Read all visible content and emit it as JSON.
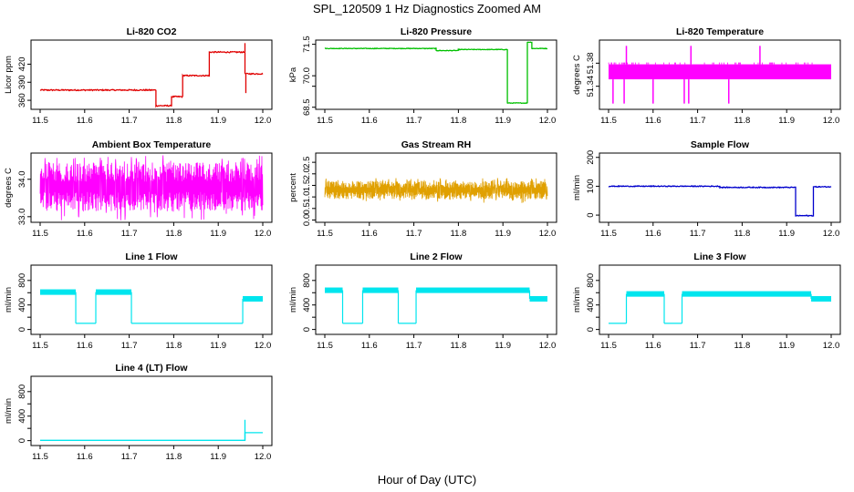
{
  "figure": {
    "title": "SPL_120509  1 Hz Diagnostics Zoomed AM",
    "xlabel": "Hour of Day (UTC)"
  },
  "chart_data": [
    {
      "type": "line",
      "title": "Li-820 CO2",
      "ylabel": "Licor ppm",
      "color": "#e00000",
      "xlim": [
        11.5,
        12.0
      ],
      "ylim": [
        345,
        460
      ],
      "yticks": [
        360,
        390,
        420
      ],
      "noise": 1,
      "segments": [
        [
          11.5,
          11.76,
          377
        ],
        [
          11.76,
          11.795,
          351
        ],
        [
          11.795,
          11.82,
          366
        ],
        [
          11.82,
          11.88,
          401
        ],
        [
          11.88,
          11.96,
          440
        ],
        [
          11.96,
          12.0,
          404
        ]
      ],
      "spikes": [
        [
          11.96,
          455
        ],
        [
          11.962,
          372
        ]
      ]
    },
    {
      "type": "line",
      "title": "Li-820 Pressure",
      "ylabel": "kPa",
      "color": "#00c000",
      "xlim": [
        11.5,
        12.0
      ],
      "ylim": [
        68.4,
        71.7
      ],
      "yticks": [
        68.5,
        69.5,
        70.0,
        71.5
      ],
      "yticklabels": [
        "68.5",
        "",
        "70.0",
        "71.5"
      ],
      "noise": 0.015,
      "segments": [
        [
          11.5,
          11.75,
          71.3
        ],
        [
          11.75,
          11.8,
          71.2
        ],
        [
          11.8,
          11.91,
          71.25
        ],
        [
          11.91,
          11.955,
          68.7
        ],
        [
          11.955,
          11.965,
          71.6
        ],
        [
          11.965,
          12.0,
          71.3
        ]
      ],
      "spikes": []
    },
    {
      "type": "band",
      "title": "Li-820 Temperature",
      "ylabel": "degrees C",
      "color": "#ff00ff",
      "xlim": [
        11.5,
        12.0
      ],
      "ylim": [
        51.3,
        51.42
      ],
      "yticks": [
        51.34,
        51.38
      ],
      "yticklabels": [
        "51.34",
        "51.38"
      ],
      "band": [
        51.352,
        51.378
      ],
      "spikes": [
        [
          11.54,
          51.41
        ],
        [
          11.685,
          51.41
        ],
        [
          11.84,
          51.41
        ],
        [
          11.51,
          51.31
        ],
        [
          11.535,
          51.31
        ],
        [
          11.6,
          51.31
        ],
        [
          11.67,
          51.31
        ],
        [
          11.68,
          51.31
        ],
        [
          11.77,
          51.31
        ]
      ]
    },
    {
      "type": "band",
      "title": "Ambient Box Temperature",
      "ylabel": "degrees C",
      "color": "#ff00ff",
      "xlim": [
        11.5,
        12.0
      ],
      "ylim": [
        32.85,
        34.7
      ],
      "yticks": [
        33.0,
        34.0
      ],
      "yticklabels": [
        "33.0",
        "34.0"
      ],
      "band": [
        33.15,
        34.45
      ],
      "dense": true,
      "spikes": []
    },
    {
      "type": "band",
      "title": "Gas Stream RH",
      "ylabel": "percent",
      "color": "#e0a000",
      "xlim": [
        11.5,
        12.0
      ],
      "ylim": [
        -0.1,
        2.9
      ],
      "yticks": [
        0.0,
        0.5,
        1.0,
        1.5,
        2.0,
        2.5
      ],
      "yticklabels": [
        "0.0",
        "0.5",
        "1.0",
        "1.5",
        "2.0",
        "2.5"
      ],
      "band": [
        0.9,
        1.7
      ],
      "dense": true,
      "spikes": []
    },
    {
      "type": "line",
      "title": "Sample Flow",
      "ylabel": "ml/min",
      "color": "#0000cc",
      "xlim": [
        11.5,
        12.0
      ],
      "ylim": [
        -25,
        215
      ],
      "yticks": [
        0,
        100,
        200
      ],
      "noise": 1.5,
      "segments": [
        [
          11.5,
          11.75,
          100
        ],
        [
          11.75,
          11.92,
          96
        ],
        [
          11.92,
          11.96,
          -2
        ],
        [
          11.96,
          12.0,
          98
        ]
      ],
      "spikes": []
    },
    {
      "type": "flow",
      "title": "Line 1 Flow",
      "ylabel": "ml/min",
      "color": "#00e5ee",
      "xlim": [
        11.5,
        12.0
      ],
      "ylim": [
        -80,
        1050
      ],
      "yticks": [
        0,
        200,
        400,
        600,
        800
      ],
      "yticklabels": [
        "0",
        "",
        "400",
        "",
        "800"
      ],
      "segments": [
        [
          11.5,
          11.58,
          "on",
          610
        ],
        [
          11.58,
          11.625,
          "off",
          100
        ],
        [
          11.625,
          11.705,
          "on",
          610
        ],
        [
          11.705,
          11.955,
          "off",
          100
        ],
        [
          11.955,
          12.0,
          "on",
          500
        ]
      ]
    },
    {
      "type": "flow",
      "title": "Line 2 Flow",
      "ylabel": "ml/min",
      "color": "#00e5ee",
      "xlim": [
        11.5,
        12.0
      ],
      "ylim": [
        -80,
        1050
      ],
      "yticks": [
        0,
        200,
        400,
        600,
        800
      ],
      "yticklabels": [
        "0",
        "",
        "400",
        "",
        "800"
      ],
      "segments": [
        [
          11.5,
          11.54,
          "on",
          640
        ],
        [
          11.54,
          11.585,
          "off",
          100
        ],
        [
          11.585,
          11.665,
          "on",
          640
        ],
        [
          11.665,
          11.705,
          "off",
          100
        ],
        [
          11.705,
          11.96,
          "on",
          640
        ],
        [
          11.96,
          12.0,
          "on",
          500
        ]
      ]
    },
    {
      "type": "flow",
      "title": "Line 3 Flow",
      "ylabel": "ml/min",
      "color": "#00e5ee",
      "xlim": [
        11.5,
        12.0
      ],
      "ylim": [
        -80,
        1050
      ],
      "yticks": [
        0,
        200,
        400,
        600,
        800
      ],
      "yticklabels": [
        "0",
        "",
        "400",
        "",
        "800"
      ],
      "segments": [
        [
          11.5,
          11.54,
          "off",
          100
        ],
        [
          11.54,
          11.625,
          "on",
          580
        ],
        [
          11.625,
          11.665,
          "off",
          100
        ],
        [
          11.665,
          11.955,
          "on",
          580
        ],
        [
          11.955,
          12.0,
          "on",
          500
        ]
      ]
    },
    {
      "type": "line",
      "title": "Line 4 (LT) Flow",
      "ylabel": "ml/min",
      "color": "#00e5ee",
      "xlim": [
        11.5,
        12.0
      ],
      "ylim": [
        -80,
        1050
      ],
      "yticks": [
        0,
        200,
        400,
        600,
        800
      ],
      "yticklabels": [
        "0",
        "",
        "400",
        "",
        "800"
      ],
      "noise": 0,
      "segments": [
        [
          11.5,
          11.96,
          5
        ],
        [
          11.96,
          12.0,
          130
        ]
      ],
      "spikes": [
        [
          11.96,
          340
        ]
      ]
    }
  ],
  "xaxis": {
    "ticks": [
      11.5,
      11.6,
      11.7,
      11.8,
      11.9,
      12.0
    ],
    "ticklabels": [
      "11.5",
      "11.6",
      "11.7",
      "11.8",
      "11.9",
      "12.0"
    ]
  }
}
